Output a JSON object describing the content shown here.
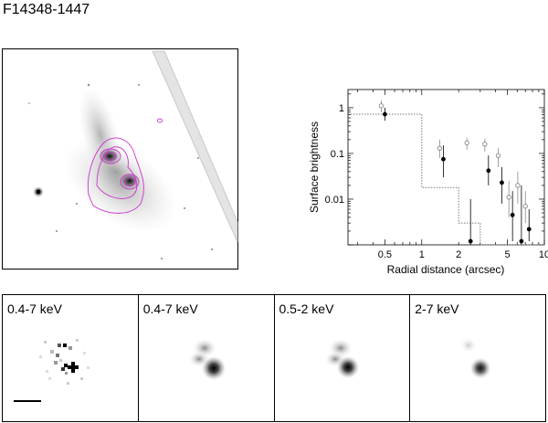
{
  "figure": {
    "title": "F14348-1447"
  },
  "panels": [
    {
      "label": "0.4-7 keV",
      "kind": "raw"
    },
    {
      "label": "0.4-7 keV",
      "kind": "smooth"
    },
    {
      "label": "0.5-2 keV",
      "kind": "smooth"
    },
    {
      "label": "2-7 keV",
      "kind": "hard"
    }
  ],
  "colors": {
    "contour": "#cc33cc",
    "model": "#777777"
  },
  "chart_data": {
    "type": "scatter",
    "title": "",
    "xlabel": "Radial distance (arcsec)",
    "ylabel": "Surface brightness",
    "xscale": "log",
    "yscale": "log",
    "xlim": [
      0.25,
      10
    ],
    "ylim": [
      0.001,
      2.5
    ],
    "xticks": [
      {
        "v": 0.5,
        "label": "0.5"
      },
      {
        "v": 1,
        "label": "1"
      },
      {
        "v": 2,
        "label": "2"
      },
      {
        "v": 5,
        "label": "5"
      },
      {
        "v": 10,
        "label": "10"
      }
    ],
    "yticks": [
      {
        "v": 1,
        "label": "1"
      },
      {
        "v": 0.1,
        "label": "0.1"
      },
      {
        "v": 0.01,
        "label": "0.01"
      }
    ],
    "series": [
      {
        "marker": "filled",
        "points": [
          {
            "x": 0.5,
            "y": 0.72,
            "lo": 0.52,
            "hi": 1.0
          },
          {
            "x": 1.5,
            "y": 0.075,
            "lo": 0.03,
            "hi": 0.15
          },
          {
            "x": 2.5,
            "y": 0.0012,
            "lo": 0.00095,
            "hi": 0.01
          },
          {
            "x": 3.5,
            "y": 0.042,
            "lo": 0.02,
            "hi": 0.09
          },
          {
            "x": 4.5,
            "y": 0.023,
            "lo": 0.008,
            "hi": 0.05
          },
          {
            "x": 5.5,
            "y": 0.0045,
            "lo": 0.0012,
            "hi": 0.015
          },
          {
            "x": 6.5,
            "y": 0.0012,
            "lo": 0.00095,
            "hi": 0.02
          },
          {
            "x": 7.5,
            "y": 0.0022,
            "lo": 0.0012,
            "hi": 0.006
          }
        ]
      },
      {
        "marker": "open",
        "points": [
          {
            "x": 0.5,
            "y": 1.1,
            "lo": 0.8,
            "hi": 1.45
          },
          {
            "x": 1.5,
            "y": 0.13,
            "lo": 0.08,
            "hi": 0.2
          },
          {
            "x": 2.5,
            "y": 0.17,
            "lo": 0.12,
            "hi": 0.22
          },
          {
            "x": 3.5,
            "y": 0.16,
            "lo": 0.11,
            "hi": 0.21
          },
          {
            "x": 4.5,
            "y": 0.09,
            "lo": 0.05,
            "hi": 0.13
          },
          {
            "x": 5.5,
            "y": 0.011,
            "lo": 0.004,
            "hi": 0.025
          },
          {
            "x": 6.5,
            "y": 0.02,
            "lo": 0.008,
            "hi": 0.04
          },
          {
            "x": 7.5,
            "y": 0.007,
            "lo": 0.003,
            "hi": 0.015
          }
        ]
      }
    ],
    "model_step": [
      {
        "x0": 0.25,
        "x1": 1.0,
        "y": 0.72
      },
      {
        "x0": 1.0,
        "x1": 2.0,
        "y": 0.018
      },
      {
        "x0": 2.0,
        "x1": 3.0,
        "y": 0.003
      },
      {
        "x0": 3.0,
        "x1": 10.0,
        "y": 0.001
      }
    ],
    "grid": false,
    "legend": "none"
  }
}
